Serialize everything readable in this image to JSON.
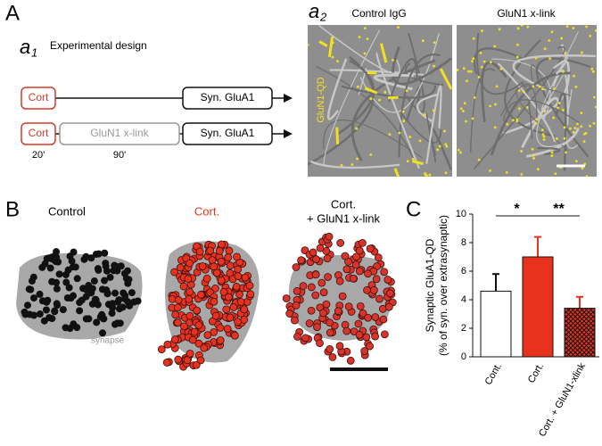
{
  "panels": {
    "a": {
      "letter": "A",
      "a1": {
        "label": "a",
        "sub": "1",
        "title": "Experimental design",
        "row1": {
          "cort": "Cort",
          "end": "Syn. GluA1"
        },
        "row2": {
          "cort": "Cort",
          "mid": "GluN1 x-link",
          "end": "Syn. GluA1"
        },
        "times": [
          "20'",
          "90'"
        ]
      },
      "a2": {
        "label": "a",
        "sub": "2",
        "images": [
          "Control IgG",
          "GluN1 x-link"
        ],
        "side": "GluN1-QD"
      }
    },
    "b": {
      "letter": "B",
      "titles": [
        "Control",
        "Cort.",
        "Cort.",
        "+ GluN1 x-link"
      ],
      "synapse": "synapse"
    },
    "c": {
      "letter": "C"
    }
  },
  "chart_data": {
    "type": "bar",
    "ylabel": [
      "Synaptic GluA1-QD",
      "(% of syn. over extrasynaptic)"
    ],
    "categories": [
      "Cont.",
      "Cort.",
      "Cort. + GluN1-xlink"
    ],
    "values": [
      4.6,
      7.0,
      3.4
    ],
    "errors": [
      1.2,
      1.4,
      0.8
    ],
    "colors": [
      "#ffffff",
      "#e8321e",
      "#e8321e"
    ],
    "hatch": [
      false,
      false,
      true
    ],
    "ylim": [
      0,
      10
    ],
    "yticks": [
      0,
      2,
      4,
      6,
      8,
      10
    ],
    "annotations": [
      {
        "text": "*",
        "from": 0,
        "to": 1
      },
      {
        "text": "**",
        "from": 1,
        "to": 2
      }
    ]
  }
}
